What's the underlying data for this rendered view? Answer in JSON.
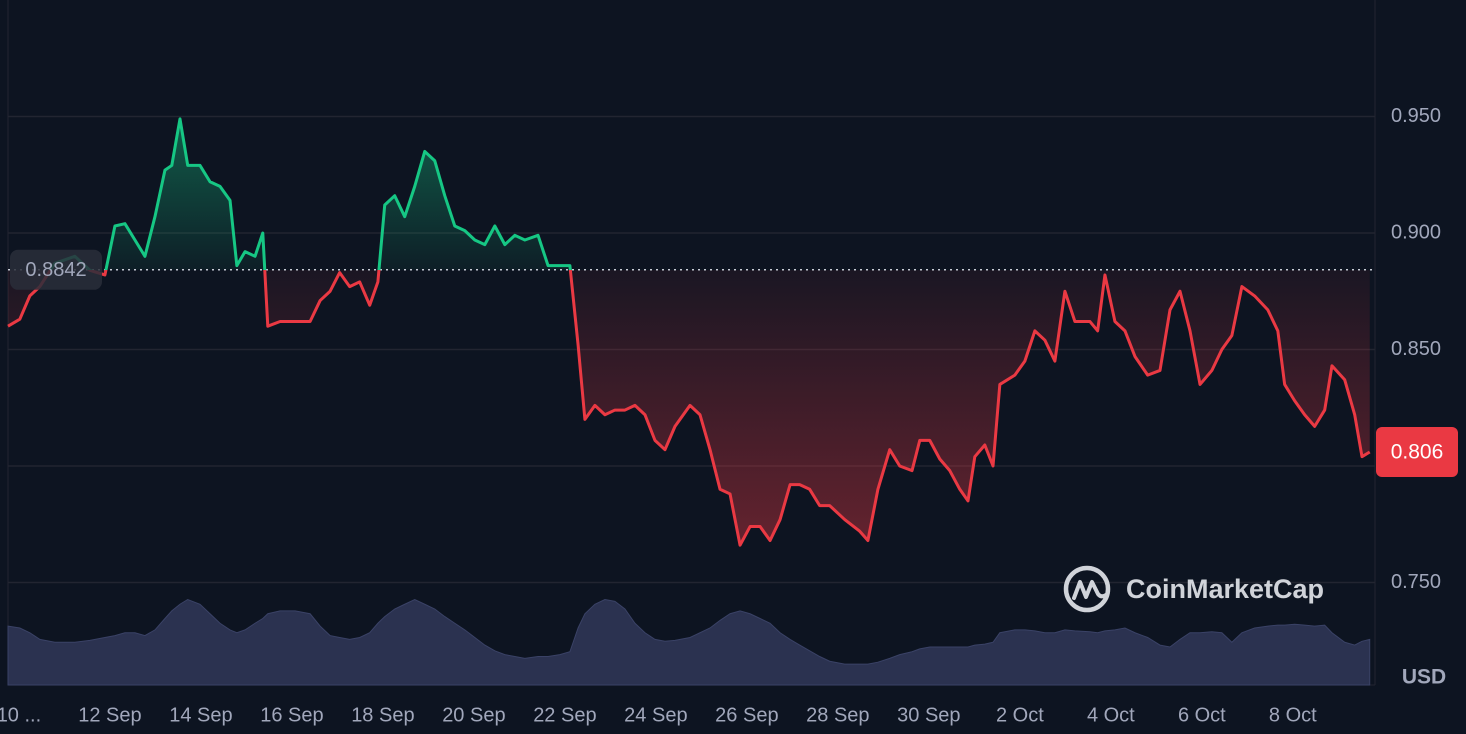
{
  "chart_data": {
    "type": "line",
    "watermark": "CoinMarketCap",
    "currency": "USD",
    "baseline": 0.8842,
    "up_color": "#16c784",
    "down_color": "#ea3943",
    "volume_color": "#2b3250",
    "grid": true,
    "xlim": [
      -0.24,
      29.74
    ],
    "ylim": [
      0.706,
      1.0
    ],
    "volume_lim": [
      0,
      100
    ],
    "yticks": [
      {
        "value": 0.75,
        "label": "0.750"
      },
      {
        "value": 0.8,
        "label": "0.800"
      },
      {
        "value": 0.85,
        "label": "0.850"
      },
      {
        "value": 0.9,
        "label": "0.900"
      },
      {
        "value": 0.95,
        "label": "0.950"
      }
    ],
    "xticks": [
      {
        "value": 0,
        "label": "10 ..."
      },
      {
        "value": 2,
        "label": "12 Sep"
      },
      {
        "value": 4,
        "label": "14 Sep"
      },
      {
        "value": 6,
        "label": "16 Sep"
      },
      {
        "value": 8,
        "label": "18 Sep"
      },
      {
        "value": 10,
        "label": "20 Sep"
      },
      {
        "value": 12,
        "label": "22 Sep"
      },
      {
        "value": 14,
        "label": "24 Sep"
      },
      {
        "value": 16,
        "label": "26 Sep"
      },
      {
        "value": 18,
        "label": "28 Sep"
      },
      {
        "value": 20,
        "label": "30 Sep"
      },
      {
        "value": 22,
        "label": "2 Oct"
      },
      {
        "value": 24,
        "label": "4 Oct"
      },
      {
        "value": 26,
        "label": "6 Oct"
      },
      {
        "value": 28,
        "label": "8 Oct"
      }
    ],
    "x": [
      -0.24,
      0.02,
      0.24,
      0.46,
      0.79,
      1.23,
      1.56,
      1.89,
      2.11,
      2.33,
      2.55,
      2.77,
      2.99,
      3.21,
      3.36,
      3.54,
      3.71,
      3.98,
      4.2,
      4.42,
      4.64,
      4.79,
      4.97,
      5.19,
      5.36,
      5.47,
      5.74,
      6.07,
      6.4,
      6.62,
      6.84,
      7.05,
      7.27,
      7.49,
      7.71,
      7.89,
      8.04,
      8.26,
      8.48,
      8.7,
      8.92,
      9.14,
      9.36,
      9.58,
      9.8,
      10.02,
      10.24,
      10.46,
      10.68,
      10.9,
      11.12,
      11.41,
      11.63,
      11.89,
      12.11,
      12.29,
      12.44,
      12.66,
      12.88,
      13.1,
      13.32,
      13.54,
      13.76,
      13.98,
      14.2,
      14.42,
      14.75,
      14.97,
      15.19,
      15.41,
      15.63,
      15.85,
      16.07,
      16.29,
      16.51,
      16.73,
      16.95,
      17.16,
      17.38,
      17.6,
      17.82,
      18.15,
      18.48,
      18.66,
      18.88,
      19.14,
      19.36,
      19.63,
      19.8,
      20.02,
      20.24,
      20.46,
      20.68,
      20.86,
      21.01,
      21.23,
      21.41,
      21.56,
      21.89,
      22.11,
      22.33,
      22.55,
      22.77,
      22.99,
      23.21,
      23.54,
      23.71,
      23.87,
      24.09,
      24.31,
      24.53,
      24.81,
      25.08,
      25.3,
      25.52,
      25.74,
      25.96,
      26.22,
      26.44,
      26.66,
      26.88,
      27.16,
      27.45,
      27.67,
      27.82,
      28.04,
      28.26,
      28.48,
      28.7,
      28.86,
      29.14,
      29.36,
      29.52,
      29.69
    ],
    "values": [
      0.86,
      0.863,
      0.873,
      0.877,
      0.887,
      0.89,
      0.884,
      0.882,
      0.903,
      0.904,
      0.897,
      0.89,
      0.907,
      0.927,
      0.929,
      0.949,
      0.929,
      0.929,
      0.922,
      0.92,
      0.914,
      0.886,
      0.892,
      0.89,
      0.9,
      0.86,
      0.862,
      0.862,
      0.862,
      0.871,
      0.875,
      0.883,
      0.877,
      0.879,
      0.869,
      0.879,
      0.912,
      0.916,
      0.907,
      0.92,
      0.935,
      0.931,
      0.916,
      0.903,
      0.901,
      0.897,
      0.895,
      0.903,
      0.895,
      0.899,
      0.897,
      0.899,
      0.886,
      0.886,
      0.886,
      0.852,
      0.82,
      0.826,
      0.822,
      0.824,
      0.824,
      0.826,
      0.822,
      0.811,
      0.807,
      0.817,
      0.826,
      0.822,
      0.807,
      0.79,
      0.788,
      0.766,
      0.774,
      0.774,
      0.768,
      0.777,
      0.792,
      0.792,
      0.79,
      0.783,
      0.783,
      0.777,
      0.772,
      0.768,
      0.79,
      0.807,
      0.8,
      0.798,
      0.811,
      0.811,
      0.803,
      0.798,
      0.79,
      0.785,
      0.804,
      0.809,
      0.8,
      0.835,
      0.839,
      0.845,
      0.858,
      0.854,
      0.845,
      0.875,
      0.862,
      0.862,
      0.858,
      0.882,
      0.862,
      0.858,
      0.847,
      0.839,
      0.841,
      0.867,
      0.875,
      0.858,
      0.835,
      0.841,
      0.85,
      0.856,
      0.877,
      0.873,
      0.867,
      0.858,
      0.835,
      0.828,
      0.822,
      0.817,
      0.824,
      0.843,
      0.837,
      0.822,
      0.804,
      0.806
    ],
    "volume": [
      62,
      60,
      55,
      48,
      45,
      45,
      47,
      50,
      52,
      55,
      55,
      52,
      58,
      70,
      78,
      85,
      90,
      85,
      75,
      65,
      58,
      55,
      58,
      65,
      70,
      75,
      78,
      78,
      75,
      62,
      52,
      50,
      48,
      50,
      55,
      65,
      72,
      80,
      85,
      90,
      85,
      80,
      72,
      65,
      58,
      50,
      42,
      36,
      32,
      30,
      28,
      30,
      30,
      32,
      35,
      60,
      75,
      85,
      90,
      88,
      80,
      65,
      55,
      48,
      46,
      47,
      50,
      55,
      60,
      68,
      75,
      78,
      75,
      70,
      65,
      55,
      48,
      42,
      36,
      30,
      25,
      22,
      22,
      22,
      24,
      28,
      32,
      35,
      38,
      40,
      40,
      40,
      40,
      40,
      42,
      43,
      45,
      55,
      58,
      58,
      57,
      55,
      55,
      58,
      57,
      56,
      55,
      57,
      58,
      60,
      55,
      50,
      42,
      40,
      48,
      55,
      55,
      56,
      55,
      45,
      55,
      60,
      62,
      63,
      63,
      64,
      63,
      62,
      63,
      55,
      45,
      42,
      46,
      48
    ]
  }
}
